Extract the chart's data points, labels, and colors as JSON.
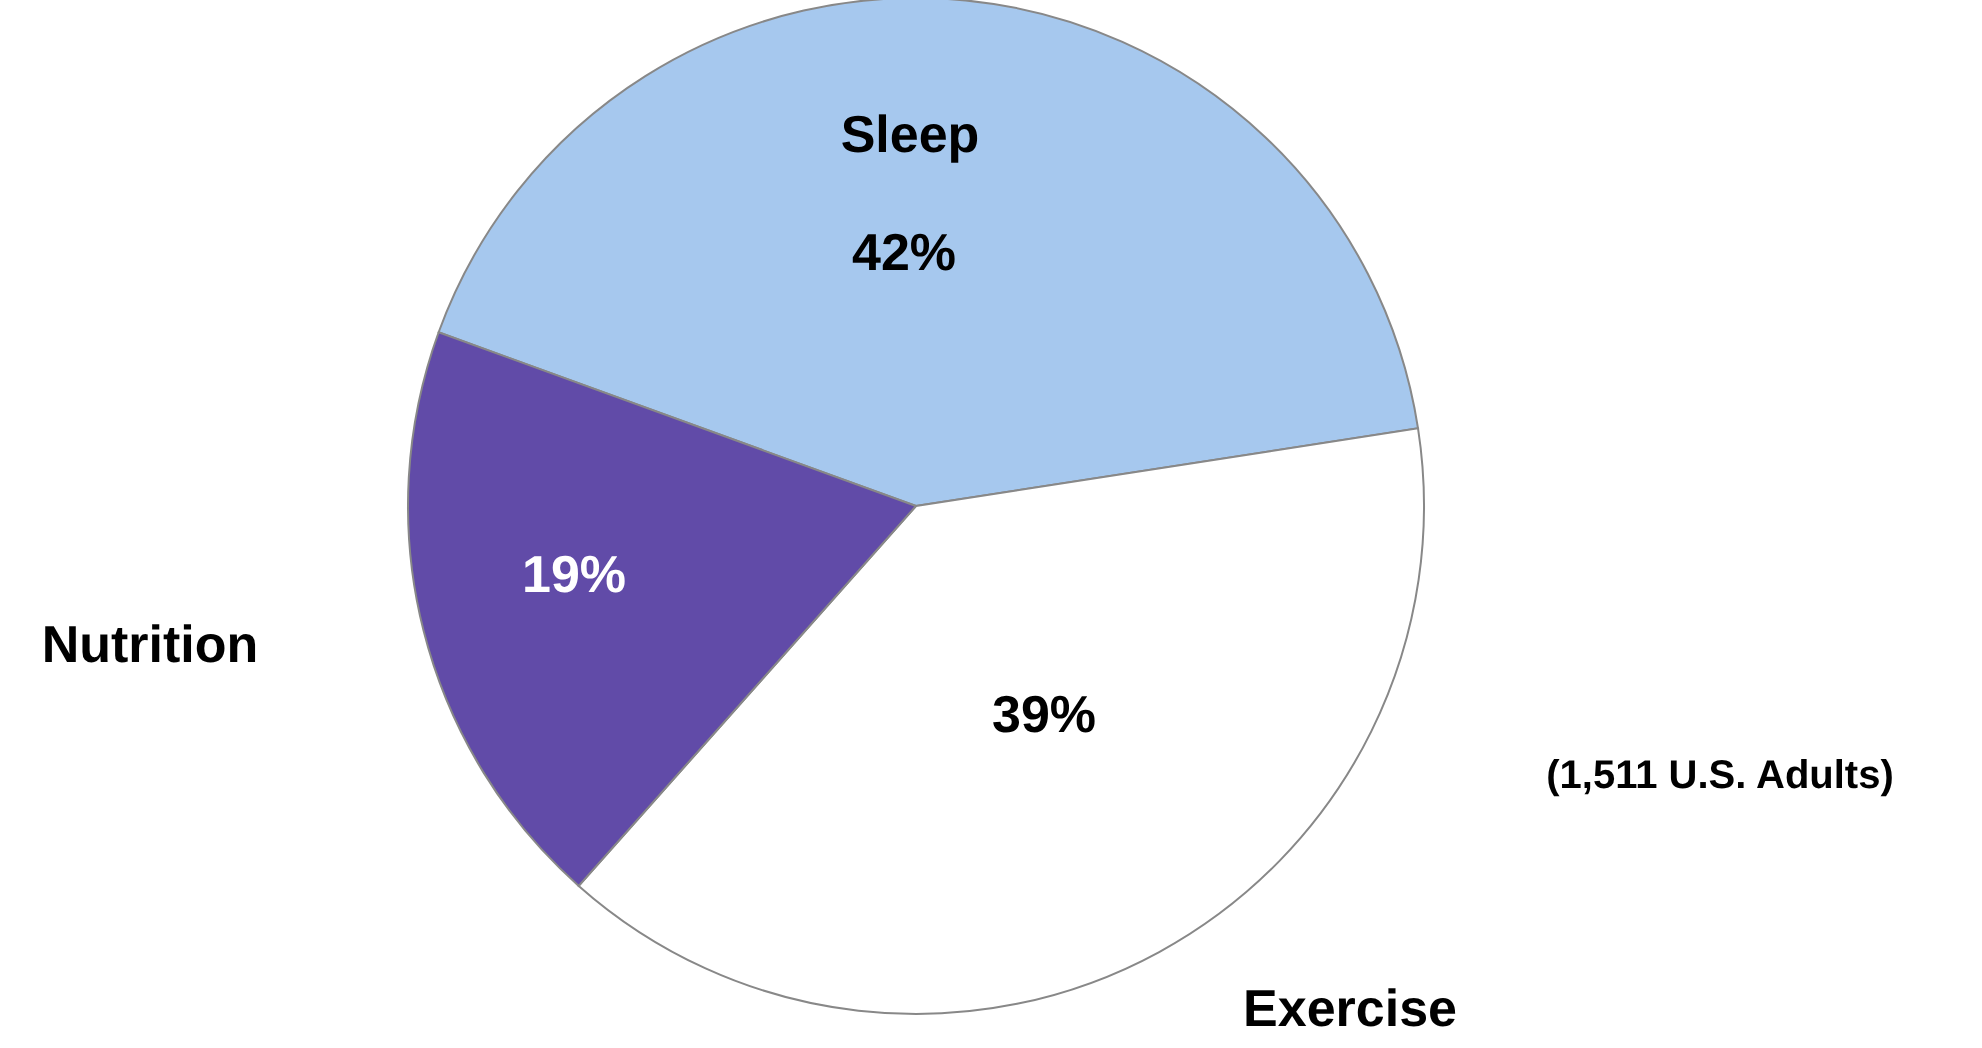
{
  "chart_data": {
    "type": "pie",
    "categories": [
      "Sleep",
      "Exercise",
      "Nutrition"
    ],
    "values": [
      42,
      39,
      19
    ],
    "colors": [
      "#a6c8ee",
      "#ffffff",
      "#614ba8"
    ],
    "value_labels": [
      "42%",
      "39%",
      "19%"
    ],
    "annotations": [
      "(1,511 U.S. Adults)"
    ]
  }
}
